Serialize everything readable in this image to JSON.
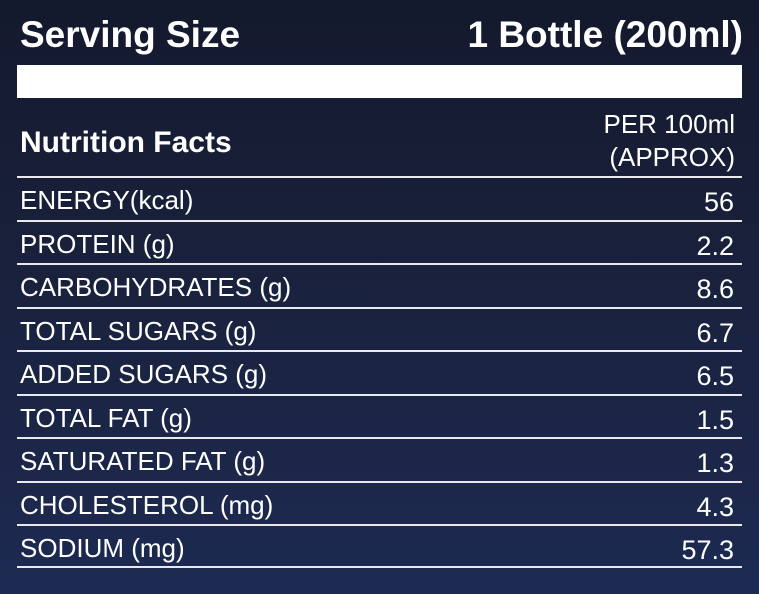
{
  "serving": {
    "label": "Serving Size",
    "value": "1 Bottle (200ml)"
  },
  "facts": {
    "title": "Nutrition Facts",
    "per_line1": "PER 100ml",
    "per_line2": "(APPROX)"
  },
  "rows": [
    {
      "name": "ENERGY(kcal)",
      "value": "56"
    },
    {
      "name": "PROTEIN (g)",
      "value": "2.2"
    },
    {
      "name": "CARBOHYDRATES (g)",
      "value": "8.6"
    },
    {
      "name": "TOTAL SUGARS (g)",
      "value": "6.7"
    },
    {
      "name": "ADDED SUGARS (g)",
      "value": "6.5"
    },
    {
      "name": "TOTAL FAT (g)",
      "value": "1.5"
    },
    {
      "name": "SATURATED FAT (g)",
      "value": "1.3"
    },
    {
      "name": "CHOLESTEROL (mg)",
      "value": "4.3"
    },
    {
      "name": "SODIUM (mg)",
      "value": "57.3"
    }
  ]
}
